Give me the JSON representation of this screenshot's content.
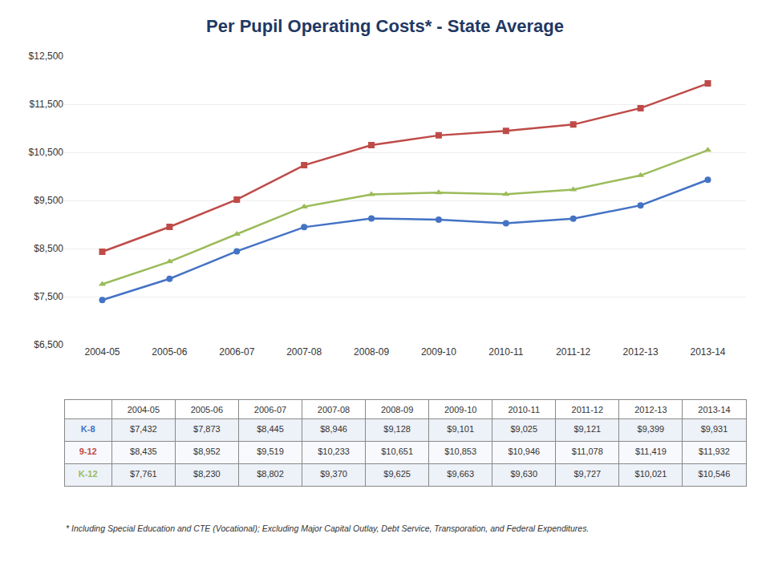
{
  "chart_data": {
    "type": "line",
    "title": "Per Pupil Operating Costs* - State Average",
    "categories": [
      "2004-05",
      "2005-06",
      "2006-07",
      "2007-08",
      "2008-09",
      "2009-10",
      "2010-11",
      "2011-12",
      "2012-13",
      "2013-14"
    ],
    "series": [
      {
        "name": "K-8",
        "color": "#4472C4",
        "marker": "circle",
        "line_style": "solid",
        "values": [
          7432,
          7873,
          8445,
          8946,
          9128,
          9101,
          9025,
          9121,
          9399,
          9931
        ],
        "value_labels": [
          "$7,432",
          "$7,873",
          "$8,445",
          "$8,946",
          "$9,128",
          "$9,101",
          "$9,025",
          "$9,121",
          "$9,399",
          "$9,931"
        ]
      },
      {
        "name": "9-12",
        "color": "#BE4B48",
        "marker": "square",
        "line_style": "solid",
        "values": [
          8435,
          8952,
          9519,
          10233,
          10651,
          10853,
          10946,
          11078,
          11419,
          11932
        ],
        "value_labels": [
          "$8,435",
          "$8,952",
          "$9,519",
          "$10,233",
          "$10,651",
          "$10,853",
          "$10,946",
          "$11,078",
          "$11,419",
          "$11,932"
        ]
      },
      {
        "name": "K-12",
        "color": "#9BBB59",
        "marker": "triangle-up",
        "line_style": "solid",
        "values": [
          7761,
          8230,
          8802,
          9370,
          9625,
          9663,
          9630,
          9727,
          10021,
          10546
        ],
        "value_labels": [
          "$7,761",
          "$8,230",
          "$8,802",
          "$9,370",
          "$9,625",
          "$9,663",
          "$9,630",
          "$9,727",
          "$10,021",
          "$10,546"
        ]
      }
    ],
    "ylim": [
      6500,
      12500
    ],
    "yticks": [
      {
        "value": 6500,
        "label": "$6,500"
      },
      {
        "value": 7500,
        "label": "$7,500"
      },
      {
        "value": 8500,
        "label": "$8,500"
      },
      {
        "value": 9500,
        "label": "$9,500"
      },
      {
        "value": 10500,
        "label": "$10,500"
      },
      {
        "value": 11500,
        "label": "$11,500"
      },
      {
        "value": 12500,
        "label": "$12,500"
      }
    ],
    "grid": true,
    "footnote": "* Including Special Education and CTE (Vocational); Excluding Major Capital Outlay, Debt Service, Transporation, and Federal Expenditures."
  }
}
